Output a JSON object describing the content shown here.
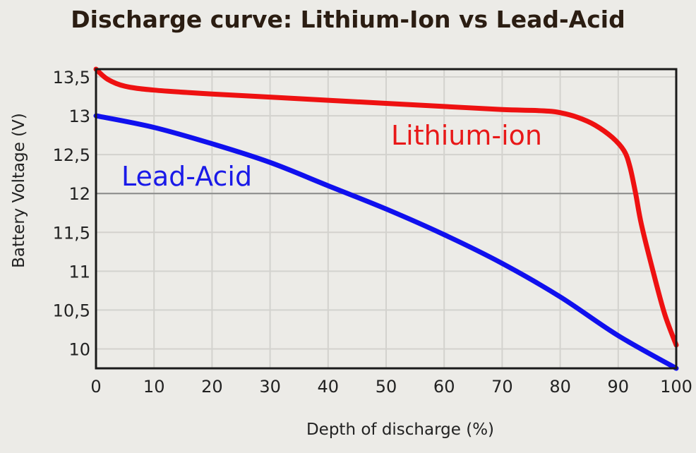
{
  "chart_data": {
    "type": "line",
    "title": "Discharge curve: Lithium-Ion vs Lead-Acid",
    "xlabel": "Depth of discharge (%)",
    "ylabel": "Battery Voltage (V)",
    "xlim": [
      0,
      100
    ],
    "ylim": [
      9.75,
      13.6
    ],
    "x_ticks": [
      0,
      10,
      20,
      30,
      40,
      50,
      60,
      70,
      80,
      90,
      100
    ],
    "x_tick_labels": [
      "0",
      "10",
      "20",
      "30",
      "40",
      "50",
      "60",
      "70",
      "80",
      "90",
      "100"
    ],
    "y_ticks": [
      10,
      10.5,
      11,
      11.5,
      12,
      12.5,
      13,
      13.5
    ],
    "y_tick_labels": [
      "10",
      "10,5",
      "11",
      "11,5",
      "12",
      "12,5",
      "13",
      "13,5"
    ],
    "grid": true,
    "highlight_line_y": 12,
    "series": [
      {
        "name": "Lithium-ion",
        "color": "#ee1111",
        "x": [
          0,
          2,
          5,
          10,
          20,
          30,
          40,
          50,
          60,
          70,
          75,
          78,
          80,
          83,
          86,
          89,
          91,
          92,
          93,
          94,
          96,
          98,
          100
        ],
        "y": [
          13.6,
          13.47,
          13.38,
          13.33,
          13.28,
          13.24,
          13.2,
          13.16,
          13.12,
          13.08,
          13.07,
          13.06,
          13.04,
          12.98,
          12.88,
          12.72,
          12.55,
          12.35,
          12.0,
          11.6,
          11.0,
          10.45,
          10.05
        ]
      },
      {
        "name": "Lead-Acid",
        "color": "#1010ee",
        "x": [
          0,
          10,
          20,
          30,
          40,
          50,
          60,
          70,
          80,
          90,
          100
        ],
        "y": [
          13.0,
          12.85,
          12.64,
          12.4,
          12.1,
          11.8,
          11.47,
          11.1,
          10.67,
          10.17,
          9.75
        ]
      }
    ]
  }
}
